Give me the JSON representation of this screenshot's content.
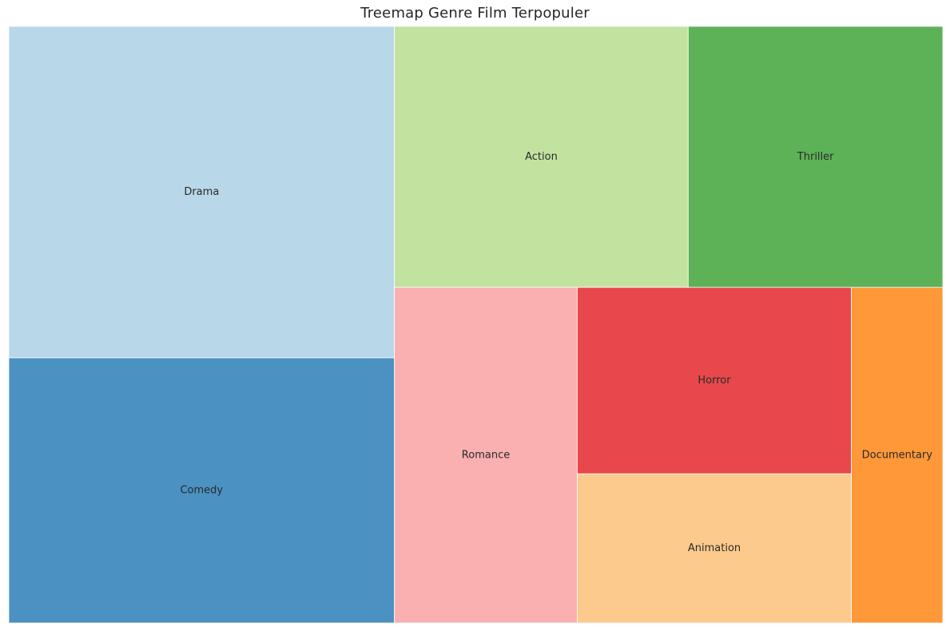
{
  "chart_data": {
    "type": "treemap",
    "title": "Treemap Genre Film Terpopuler",
    "categories": [
      "Drama",
      "Comedy",
      "Action",
      "Thriller",
      "Romance",
      "Horror",
      "Animation",
      "Documentary"
    ],
    "values": [
      25,
      20,
      15,
      13,
      12,
      10,
      8,
      6
    ],
    "colors": {
      "Drama": "#b8d7e8",
      "Comedy": "#4b91c2",
      "Action": "#c2e3a0",
      "Thriller": "#5db258",
      "Romance": "#faafb0",
      "Horror": "#e8484b",
      "Animation": "#fcca8d",
      "Documentary": "#fe9838"
    },
    "tile_border_color": "#ffffff"
  }
}
